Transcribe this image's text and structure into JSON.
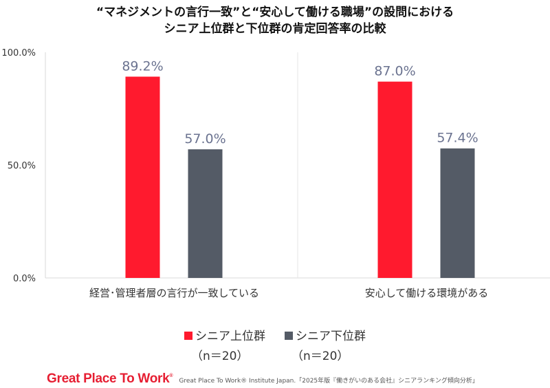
{
  "title": {
    "line1": "“マネジメントの言行一致”と“安心して働ける職場”の設問における",
    "line2": "シニア上位群と下位群の肯定回答率の比較"
  },
  "chart_data": {
    "type": "bar",
    "categories": [
      "経営･管理者層の言行が一致している",
      "安心して働ける環境がある"
    ],
    "series": [
      {
        "name": "シニア上位群",
        "sub": "（n＝20）",
        "color": "#ff1a2e",
        "values": [
          89.2,
          87.0
        ],
        "labels": [
          "89.2%",
          "87.0%"
        ]
      },
      {
        "name": "シニア下位群",
        "sub": "（n＝20）",
        "color": "#545b66",
        "values": [
          57.0,
          57.4
        ],
        "labels": [
          "57.0%",
          "57.4%"
        ]
      }
    ],
    "ylim": [
      0,
      100
    ],
    "yticks": [
      0,
      50,
      100
    ],
    "ytick_labels": [
      "0.0%",
      "50.0%",
      "100.0%"
    ],
    "grid": false,
    "legend": "bottom",
    "label_color": "#6b7390"
  },
  "footer": {
    "logo": "Great Place To Work",
    "logo_mark": "®",
    "source": "Great Place To Work® Institute Japan.「2025年版『働きがいのある会社』シニアランキング傾向分析」"
  }
}
